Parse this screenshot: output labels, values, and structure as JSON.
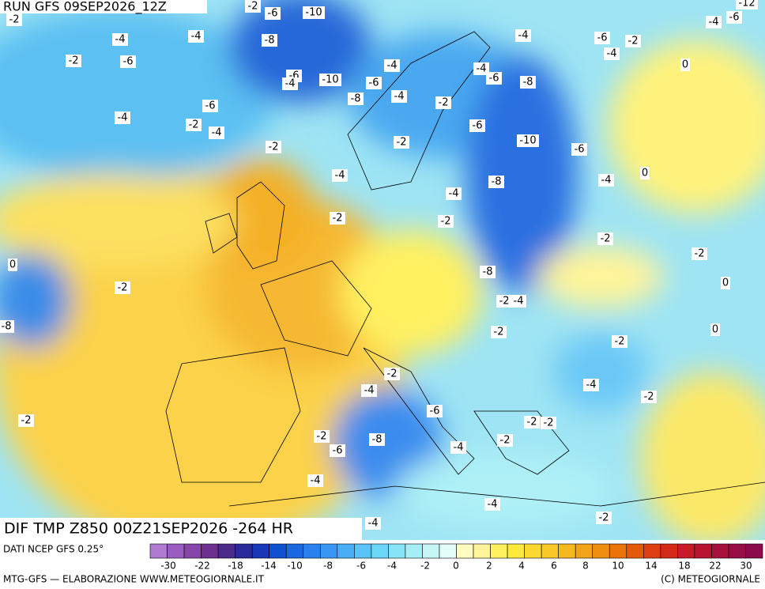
{
  "header": {
    "run": "RUN GFS 09SEP2026_12Z"
  },
  "map_title": "DIF TMP Z850 00Z21SEP2026 -264 HR",
  "source": "DATI NCEP GFS 0.25°",
  "credit_left": "MTG-GFS — ELABORAZIONE WWW.METEOGIORNALE.IT",
  "credit_right": "(C) METEOGIORNALE",
  "colorbar": {
    "colors": [
      "#b07ad0",
      "#9a5cc0",
      "#8646a8",
      "#6e3090",
      "#4a2a8a",
      "#2a2a9a",
      "#1838b8",
      "#1050d0",
      "#1a68e0",
      "#2a80ee",
      "#3a96f4",
      "#4aaef6",
      "#5ac4f8",
      "#6ad6f8",
      "#86e4f6",
      "#a6eef6",
      "#c6f6f6",
      "#e4fcfa",
      "#fffcc0",
      "#fff49a",
      "#fff060",
      "#fde83c",
      "#fbd830",
      "#f8c828",
      "#f6b820",
      "#f2a418",
      "#ee8e10",
      "#ea7408",
      "#e45a08",
      "#dc4010",
      "#d42818",
      "#c81a28",
      "#b81432",
      "#a8103c",
      "#980c44",
      "#8a0a4a"
    ],
    "labels": [
      "-30",
      "-22",
      "-18",
      "-14",
      "-10",
      "-8",
      "-6",
      "-4",
      "-2",
      "0",
      "2",
      "4",
      "6",
      "8",
      "10",
      "14",
      "18",
      "22",
      "30"
    ]
  },
  "contour_labels": [
    "-2",
    "-2",
    "-6",
    "-10",
    "-4",
    "-4",
    "-8",
    "-2",
    "-6",
    "-6",
    "-4",
    "-10",
    "-4",
    "-6",
    "-4",
    "-8",
    "-6",
    "-4",
    "-2",
    "-4",
    "-2",
    "-2",
    "-4",
    "-6",
    "-8",
    "-6",
    "-10",
    "-6",
    "-2",
    "-4",
    "-4",
    "-8",
    "-4",
    "0",
    "-2",
    "-2",
    "-2",
    "0",
    "-2",
    "-2",
    "-8",
    "-2",
    "-4",
    "0",
    "0",
    "-2",
    "-2",
    "-2",
    "-4",
    "-4",
    "-2",
    "-6",
    "-2",
    "-2",
    "-2",
    "-8",
    "-2",
    "-6",
    "-4",
    "-4",
    "-4",
    "-2",
    "-4",
    "-4",
    "-6",
    "-2",
    "-4",
    "0",
    "-4",
    "-6",
    "-12",
    "-8",
    "-2"
  ]
}
